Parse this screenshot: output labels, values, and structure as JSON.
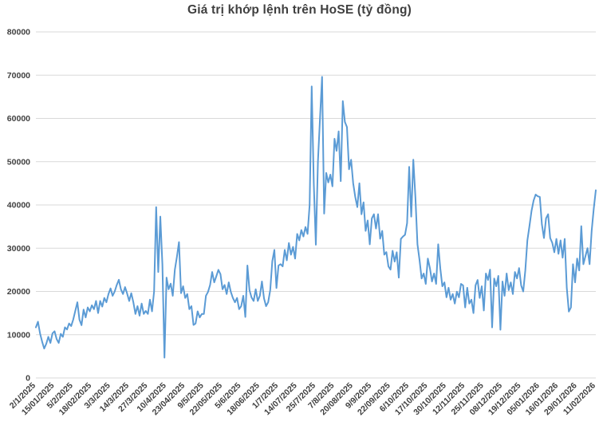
{
  "chart_data": {
    "type": "line",
    "title": "Giá trị khớp lệnh trên HoSE (tỷ đồng)",
    "legend": "none",
    "grid": "horizontal",
    "ylim": [
      0,
      80000
    ],
    "y_tick_labels": [
      "0",
      "10000",
      "20000",
      "30000",
      "40000",
      "50000",
      "60000",
      "70000",
      "80000"
    ],
    "x_tick_labels": [
      "2/1/2025",
      "15/01/2025",
      "5/2/2025",
      "18/02/2025",
      "3/3/2025",
      "14/3/2025",
      "27/3/2025",
      "10/4/2025",
      "23/04/2025",
      "9/5/2025",
      "22/05/2025",
      "5/6/2025",
      "18/06/2025",
      "1/7/2025",
      "14/07/2025",
      "25/7/2025",
      "7/8/2025",
      "20/08/2025",
      "9/9/2025",
      "22/09/2025",
      "6/10/2025",
      "17/10/2025",
      "30/10/2025",
      "12/11/2025",
      "25/11/2025",
      "08/12/2025",
      "19/12/2025",
      "05/01/2026",
      "16/01/2026",
      "29/01/2026",
      "11/02/2026"
    ],
    "label_every": 9,
    "line_color": "#5B9BD5",
    "grid_color": "#D9D9D9",
    "text_color": "#404040",
    "values": [
      11700,
      13000,
      10300,
      8400,
      6800,
      7900,
      9500,
      8100,
      10300,
      10800,
      9000,
      8100,
      10200,
      9500,
      11700,
      11200,
      12600,
      12000,
      13500,
      15500,
      17500,
      13500,
      12200,
      15800,
      14000,
      16300,
      15400,
      16800,
      15900,
      17800,
      15000,
      17800,
      16500,
      18500,
      17500,
      19400,
      20700,
      19000,
      20000,
      21500,
      22700,
      20500,
      19400,
      21000,
      19500,
      17800,
      19600,
      17500,
      14800,
      16600,
      14400,
      17200,
      14800,
      15500,
      14800,
      18100,
      15400,
      20000,
      39500,
      24500,
      37300,
      26300,
      4700,
      23200,
      20500,
      21800,
      19000,
      25000,
      28000,
      31400,
      19600,
      21200,
      18500,
      19400,
      15900,
      16600,
      12250,
      12600,
      15400,
      14000,
      14800,
      14800,
      19000,
      19900,
      21500,
      24500,
      22100,
      23500,
      25000,
      24000,
      20500,
      21500,
      19400,
      22100,
      19900,
      18500,
      17500,
      18500,
      15900,
      16600,
      19000,
      14100,
      26000,
      20300,
      18600,
      17800,
      20500,
      17800,
      19000,
      22300,
      18400,
      16600,
      17500,
      20300,
      27000,
      29600,
      20800,
      26000,
      26300,
      25800,
      29600,
      27200,
      31200,
      28500,
      30300,
      27600,
      33300,
      31800,
      34200,
      32700,
      34900,
      33300,
      40000,
      67400,
      45000,
      30800,
      50000,
      60000,
      69600,
      38000,
      47400,
      45200,
      47000,
      44300,
      55300,
      52500,
      57000,
      45500,
      64000,
      59200,
      58000,
      48250,
      50450,
      45000,
      41850,
      39500,
      45000,
      37850,
      40600,
      34000,
      36400,
      30900,
      36900,
      37850,
      34550,
      37850,
      32200,
      34000,
      28500,
      29100,
      25800,
      25050,
      29400,
      26900,
      29050,
      23200,
      32150,
      32700,
      33100,
      35800,
      48800,
      37300,
      50450,
      41850,
      30900,
      27250,
      23000,
      24150,
      21750,
      27600,
      25400,
      22300,
      24150,
      21750,
      30900,
      25400,
      21200,
      22100,
      18650,
      20850,
      18100,
      19400,
      17200,
      19950,
      18650,
      21750,
      21400,
      16300,
      20850,
      17200,
      18100,
      15000,
      21400,
      22650,
      18500,
      21200,
      15600,
      24150,
      22650,
      25050,
      11700,
      23000,
      21200,
      23600,
      11150,
      22300,
      19000,
      24150,
      20300,
      22100,
      19400,
      24500,
      23000,
      25400,
      21400,
      20000,
      24850,
      31800,
      35100,
      38600,
      41000,
      42400,
      42000,
      41850,
      35500,
      32350,
      36900,
      37850,
      32350,
      31250,
      29050,
      32150,
      28700,
      31800,
      27800,
      32150,
      20850,
      15350,
      16300,
      26300,
      22100,
      27600,
      24850,
      35100,
      26300,
      28150,
      30000,
      26300,
      34000,
      39100,
      43400
    ]
  }
}
